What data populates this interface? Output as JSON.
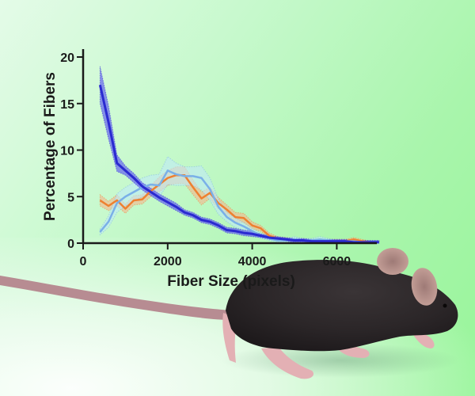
{
  "chart_data": {
    "type": "line",
    "title": "",
    "xlabel": "Fiber Size (pixels)",
    "ylabel": "Percentage of Fibers",
    "xlim": [
      0,
      7000
    ],
    "ylim": [
      0,
      20
    ],
    "xticks": [
      0,
      2000,
      4000,
      6000
    ],
    "yticks": [
      0,
      5,
      10,
      15,
      20
    ],
    "grid": false,
    "legend": null,
    "error_bands": true,
    "x": [
      400,
      600,
      800,
      1000,
      1200,
      1400,
      1600,
      1800,
      2000,
      2200,
      2400,
      2600,
      2800,
      3000,
      3200,
      3400,
      3600,
      3800,
      4000,
      4200,
      4400,
      4600,
      4800,
      5000,
      5200,
      5400,
      5600,
      5800,
      6000,
      6200,
      6400,
      6600,
      6800,
      7000
    ],
    "series": [
      {
        "name": "dark-blue",
        "color": "#2a2ad0",
        "band_color": "#6b6bee",
        "values": [
          17.0,
          13.0,
          8.6,
          7.8,
          7.0,
          6.1,
          5.5,
          4.9,
          4.4,
          3.9,
          3.3,
          3.0,
          2.5,
          2.3,
          1.9,
          1.4,
          1.3,
          1.1,
          1.0,
          0.8,
          0.6,
          0.5,
          0.4,
          0.3,
          0.3,
          0.2,
          0.2,
          0.2,
          0.2,
          0.2,
          0.1,
          0.1,
          0.1,
          0.1
        ],
        "band": [
          2.0,
          1.8,
          0.9,
          0.5,
          0.5,
          0.4,
          0.4,
          0.4,
          0.4,
          0.4,
          0.3,
          0.3,
          0.3,
          0.3,
          0.3,
          0.3,
          0.3,
          0.3,
          0.3,
          0.2,
          0.2,
          0.2,
          0.2,
          0.2,
          0.2,
          0.2,
          0.2,
          0.2,
          0.2,
          0.2,
          0.2,
          0.2,
          0.2,
          0.2
        ]
      },
      {
        "name": "orange",
        "color": "#ee8030",
        "band_color": "#f7b48c",
        "values": [
          4.6,
          4.0,
          4.6,
          3.7,
          4.6,
          4.7,
          5.6,
          6.3,
          7.0,
          7.3,
          7.3,
          6.0,
          4.8,
          5.4,
          4.3,
          3.6,
          2.8,
          2.7,
          1.9,
          1.6,
          0.8,
          0.5,
          0.4,
          0.3,
          0.3,
          0.2,
          0.2,
          0.2,
          0.2,
          0.2,
          0.4,
          0.2,
          0.1,
          0.1
        ],
        "band": [
          0.6,
          0.5,
          0.6,
          0.5,
          0.5,
          0.5,
          0.6,
          0.8,
          0.8,
          0.9,
          0.9,
          0.8,
          0.7,
          0.6,
          0.6,
          0.5,
          0.5,
          0.5,
          0.4,
          0.3,
          0.3,
          0.2,
          0.2,
          0.2,
          0.2,
          0.2,
          0.2,
          0.2,
          0.2,
          0.2,
          0.2,
          0.2,
          0.1,
          0.1
        ]
      },
      {
        "name": "light-blue",
        "color": "#7ab0e8",
        "band_color": "#bfeaf7",
        "values": [
          1.2,
          2.3,
          4.3,
          5.0,
          5.5,
          6.0,
          6.3,
          6.2,
          7.8,
          7.4,
          7.2,
          7.2,
          7.0,
          5.8,
          3.9,
          2.8,
          2.2,
          1.8,
          1.3,
          0.8,
          0.5,
          0.3,
          0.3,
          0.4,
          0.3,
          0.3,
          0.4,
          0.3,
          0.2,
          0.2,
          0.2,
          0.1,
          0.1,
          0.1
        ],
        "band": [
          0.3,
          0.6,
          1.0,
          1.0,
          1.0,
          1.0,
          1.0,
          1.2,
          1.5,
          1.2,
          1.0,
          1.0,
          1.3,
          1.2,
          0.8,
          0.5,
          0.5,
          0.4,
          0.3,
          0.3,
          0.2,
          0.2,
          0.2,
          0.3,
          0.2,
          0.2,
          0.3,
          0.2,
          0.1,
          0.1,
          0.1,
          0.1,
          0.1,
          0.1
        ]
      }
    ]
  },
  "illustration": {
    "subject": "black-mouse",
    "fur_color": "#2b2628",
    "skin_color": "#e3b0b4",
    "tail_color": "#b78c92"
  },
  "colors": {
    "axis": "#1a1a1a",
    "background_start": "#e4fbe8",
    "background_end": "#98f59a"
  }
}
